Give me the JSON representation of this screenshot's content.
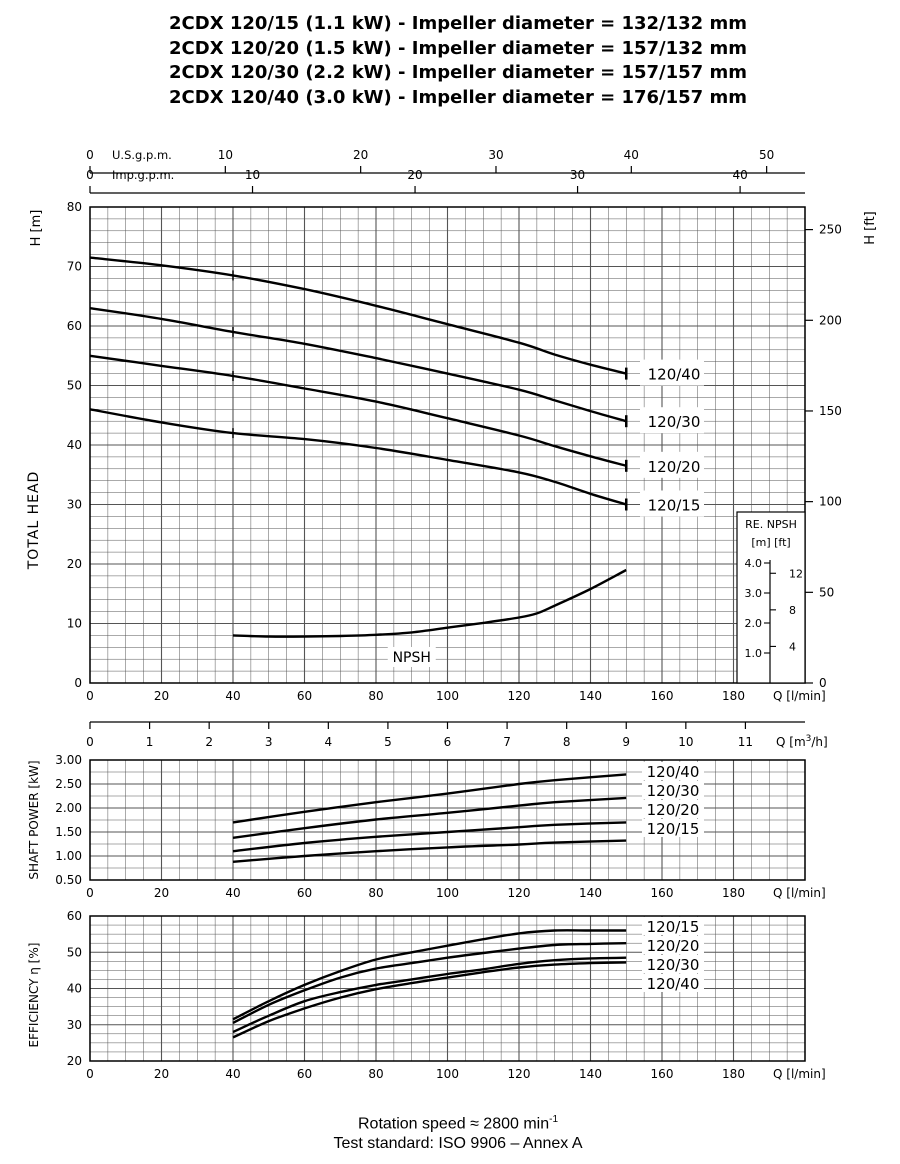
{
  "titles": [
    "2CDX 120/15 (1.1 kW) - Impeller diameter = 132/132 mm",
    "2CDX 120/20 (1.5 kW) - Impeller diameter = 157/132 mm",
    "2CDX 120/30 (2.2 kW) - Impeller diameter = 157/157 mm",
    "2CDX 120/40 (3.0 kW) - Impeller diameter = 176/157 mm"
  ],
  "footer": {
    "line1_prefix": "Rotation speed ≈ 2800 min",
    "line1_sup": "-1",
    "line2": "Test standard: ISO 9906 – Annex A"
  },
  "colors": {
    "grid": "#555555",
    "curve": "#000000",
    "background": "#ffffff"
  },
  "chart_data": [
    {
      "type": "line",
      "panel": "head",
      "x_unit_label": "Q [l/min]",
      "xlim": [
        0,
        200
      ],
      "x_ticks": [
        0,
        20,
        40,
        60,
        80,
        100,
        120,
        140,
        160,
        180
      ],
      "ylabel_left": "H [m]",
      "ylabel_left_rotated": "TOTAL HEAD",
      "ylim": [
        0,
        80
      ],
      "y_ticks": [
        0,
        10,
        20,
        30,
        40,
        50,
        60,
        70,
        80
      ],
      "ylabel_right": "H [ft]",
      "y_ticks_right": [
        0,
        50,
        100,
        150,
        200,
        250
      ],
      "top_axes": [
        {
          "label": "U.S.g.p.m.",
          "ticks": [
            0,
            10,
            20,
            30,
            40,
            50
          ]
        },
        {
          "label": "Imp.g.p.m.",
          "ticks": [
            0,
            10,
            20,
            30,
            40
          ]
        }
      ],
      "m3h_axis": {
        "label": "Q [m",
        "sup": "3",
        "suffix": "/h]",
        "ticks": [
          0,
          1,
          2,
          3,
          4,
          5,
          6,
          7,
          8,
          9,
          10,
          11
        ]
      },
      "npsh_inset": {
        "title": "RE. NPSH",
        "units": "[m]  [ft]",
        "m_ticks": [
          "1.0",
          "2.0",
          "3.0",
          "4.0"
        ],
        "ft_ticks": [
          "4",
          "8",
          "12"
        ]
      },
      "grid": true,
      "series": [
        {
          "name": "120/40",
          "x": [
            0,
            20,
            40,
            60,
            80,
            100,
            120,
            130,
            140,
            150
          ],
          "y": [
            71.5,
            70.2,
            68.5,
            66.2,
            63.4,
            60.3,
            57.2,
            55.2,
            53.5,
            52.0
          ]
        },
        {
          "name": "120/30",
          "x": [
            0,
            20,
            40,
            60,
            80,
            100,
            120,
            130,
            140,
            150
          ],
          "y": [
            63.0,
            61.2,
            59.0,
            57.0,
            54.6,
            52.0,
            49.3,
            47.5,
            45.7,
            44.0
          ]
        },
        {
          "name": "120/20",
          "x": [
            0,
            20,
            40,
            60,
            80,
            100,
            120,
            130,
            140,
            150
          ],
          "y": [
            55.0,
            53.3,
            51.6,
            49.5,
            47.3,
            44.5,
            41.6,
            39.8,
            38.1,
            36.5
          ]
        },
        {
          "name": "120/15",
          "x": [
            0,
            20,
            40,
            60,
            80,
            100,
            120,
            130,
            140,
            150
          ],
          "y": [
            46.0,
            43.8,
            42.0,
            41.0,
            39.5,
            37.5,
            35.4,
            33.8,
            31.8,
            30.0
          ]
        },
        {
          "name": "NPSH",
          "x": [
            40,
            50,
            60,
            70,
            80,
            90,
            100,
            110,
            120,
            125,
            130,
            140,
            150
          ],
          "y": [
            8.0,
            7.8,
            7.8,
            7.9,
            8.1,
            8.5,
            9.3,
            10.1,
            11.0,
            11.7,
            13.0,
            15.8,
            19.0
          ]
        }
      ]
    },
    {
      "type": "line",
      "panel": "shaft_power",
      "ylabel": "SHAFT POWER [kW]",
      "x_unit_label": "Q [l/min]",
      "xlim": [
        0,
        200
      ],
      "x_ticks": [
        0,
        20,
        40,
        60,
        80,
        100,
        120,
        140,
        160,
        180
      ],
      "ylim": [
        0.5,
        3.0
      ],
      "y_ticks": [
        "0.50",
        "1.00",
        "1.50",
        "2.00",
        "2.50",
        "3.00"
      ],
      "grid": true,
      "series": [
        {
          "name": "120/40",
          "x": [
            40,
            60,
            80,
            100,
            120,
            130,
            150
          ],
          "y": [
            1.7,
            1.92,
            2.12,
            2.3,
            2.5,
            2.58,
            2.7
          ]
        },
        {
          "name": "120/30",
          "x": [
            40,
            60,
            80,
            100,
            120,
            130,
            150
          ],
          "y": [
            1.38,
            1.58,
            1.76,
            1.9,
            2.05,
            2.12,
            2.21
          ]
        },
        {
          "name": "120/20",
          "x": [
            40,
            60,
            80,
            100,
            120,
            130,
            150
          ],
          "y": [
            1.1,
            1.27,
            1.4,
            1.5,
            1.6,
            1.65,
            1.7
          ]
        },
        {
          "name": "120/15",
          "x": [
            40,
            60,
            80,
            100,
            120,
            130,
            150
          ],
          "y": [
            0.88,
            1.0,
            1.1,
            1.18,
            1.24,
            1.28,
            1.32
          ]
        }
      ]
    },
    {
      "type": "line",
      "panel": "efficiency",
      "ylabel": "EFFICIENCY η [%]",
      "x_unit_label": "Q [l/min]",
      "xlim": [
        0,
        200
      ],
      "x_ticks": [
        0,
        20,
        40,
        60,
        80,
        100,
        120,
        140,
        160,
        180
      ],
      "ylim": [
        20,
        60
      ],
      "y_ticks": [
        20,
        30,
        40,
        50,
        60
      ],
      "grid": true,
      "series": [
        {
          "name": "120/15",
          "x": [
            40,
            50,
            60,
            70,
            80,
            90,
            100,
            110,
            120,
            130,
            140,
            150
          ],
          "y": [
            31.5,
            36.5,
            41.0,
            44.8,
            48.0,
            50.0,
            51.8,
            53.6,
            55.2,
            56.0,
            56.0,
            56.0
          ]
        },
        {
          "name": "120/20",
          "x": [
            40,
            50,
            60,
            70,
            80,
            90,
            100,
            110,
            120,
            130,
            140,
            150
          ],
          "y": [
            30.5,
            35.5,
            39.5,
            43.0,
            45.5,
            47.0,
            48.5,
            49.8,
            51.0,
            52.0,
            52.3,
            52.5
          ]
        },
        {
          "name": "120/30",
          "x": [
            40,
            50,
            60,
            70,
            80,
            90,
            100,
            110,
            120,
            130,
            140,
            150
          ],
          "y": [
            28.0,
            32.5,
            36.5,
            39.0,
            41.0,
            42.5,
            44.0,
            45.3,
            46.8,
            47.8,
            48.3,
            48.5
          ]
        },
        {
          "name": "120/40",
          "x": [
            40,
            50,
            60,
            70,
            80,
            90,
            100,
            110,
            120,
            130,
            140,
            150
          ],
          "y": [
            26.5,
            31.0,
            34.5,
            37.5,
            39.8,
            41.5,
            43.0,
            44.5,
            45.8,
            46.6,
            47.0,
            47.2
          ]
        }
      ]
    }
  ]
}
